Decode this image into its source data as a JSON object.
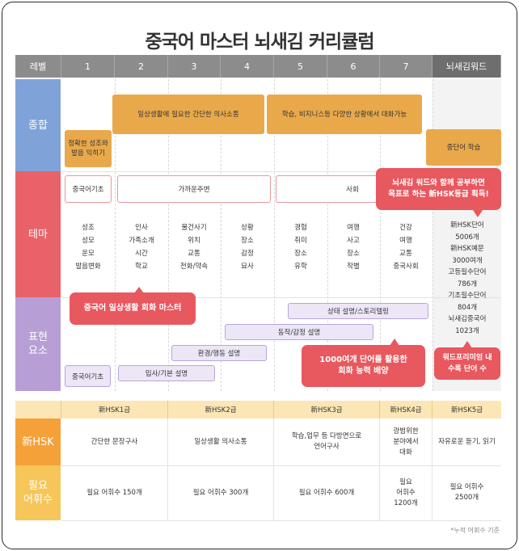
{
  "title": "중국어 마스터 뇌새김 커리큘럼",
  "header": {
    "level_label": "레벨",
    "levels": [
      "1",
      "2",
      "3",
      "4",
      "5",
      "6",
      "7"
    ],
    "last": "뇌새김워드"
  },
  "rows": {
    "general": "종합",
    "theme": "테마",
    "expression": "표현\n요소"
  },
  "general": {
    "pronunciation": "정확한 성조와\n발음 익히기",
    "simple_conv": "일상생활에 필요한 간단한 의사소통",
    "business_conv": "학습, 비지니스등 다양한 상황에서 대화가능",
    "intermediate_words": "중단어 학습"
  },
  "theme": {
    "basic": "중국어기초",
    "nearby": "가까운주변",
    "society": "사회",
    "words": [
      "성조\n성모\n운모\n발음변화",
      "인사\n가족소개\n시간\n학교",
      "물건사기\n위치\n교통\n전화/약속",
      "상황\n장소\n감정\n묘사",
      "경험\n취미\n장소\n유학",
      "여행\n사고\n장소\n작별",
      "건강\n여행\n교통\n중국사회"
    ],
    "word_counts": "新HSK단어\n5006개\n新HSK예문\n3000여개\n고등필수단어\n786개\n기초필수단어\n804개\n뇌새김중국어\n1023개"
  },
  "expression": {
    "basic": "중국어기초",
    "intro": "입사/기본 설명",
    "environment": "환경/행동 설명",
    "emotion": "동작/감정 설명",
    "situation": "상태 설명/스토리텔링"
  },
  "bubbles": {
    "hsk": "뇌새김 워드와 함께 공부하면\n목표로 하는 新HSK등급 획득!",
    "daily": "중국어 일상생활 회화 마스터",
    "vocab": "1000여개 단어를 활용한\n회화 능력 배양",
    "wordfree": "워드프리미엄 내\n수록 단어 수"
  },
  "hsk_table": {
    "row_hsk": "新HSK",
    "row_vocab": "필요\n어휘수",
    "grades": [
      "新HSK1급",
      "新HSK2급",
      "新HSK3급",
      "新HSK4급",
      "新HSK5급"
    ],
    "descriptions": [
      "간단한 문장구사",
      "일상생활 의사소통",
      "학습,업무 등 다방면으로\n언어구사",
      "광범위한\n분야에서\n대화",
      "자유로운 듣기, 읽기"
    ],
    "vocab": [
      "필요 어휘수 150개",
      "필요 어휘수 300개",
      "필요 어휘수 600개",
      "필요\n어휘수\n1200개",
      "필요 어휘수\n2500개"
    ]
  },
  "note": "*누적 어휘수 기준",
  "colors": {
    "general": "#7fa3d9",
    "theme": "#e9626a",
    "expression": "#b79fd6",
    "orange": "#e9a94b",
    "bubble": "#e8585f",
    "hsk_label": "#f4a13a",
    "vocab_label": "#f6c65a"
  }
}
